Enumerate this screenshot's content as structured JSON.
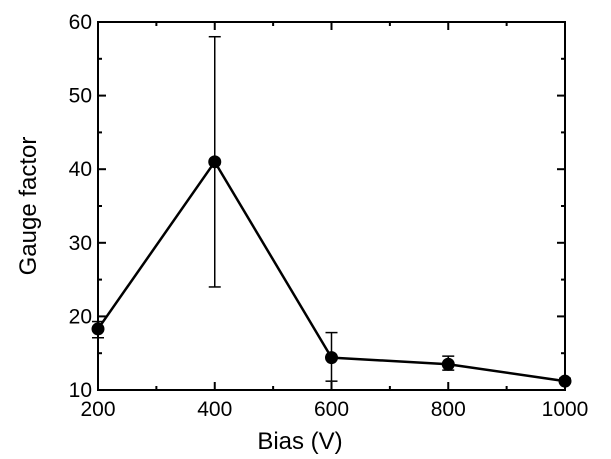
{
  "chart_data": {
    "type": "line",
    "title": "",
    "xlabel": "Bias (V)",
    "ylabel": "Gauge factor",
    "xlim": [
      200,
      1000
    ],
    "ylim": [
      10,
      60
    ],
    "x_ticks": [
      200,
      400,
      600,
      800,
      1000
    ],
    "x_minor_ticks": [
      300,
      500,
      700,
      900
    ],
    "y_ticks": [
      10,
      20,
      30,
      40,
      50,
      60
    ],
    "y_minor_ticks": [
      15,
      25,
      35,
      45,
      55
    ],
    "grid": false,
    "legend": "none",
    "series": [
      {
        "x": [
          200,
          400,
          600,
          800,
          1000
        ],
        "y": [
          18.3,
          41.0,
          14.4,
          13.5,
          11.2
        ],
        "y_err_low": [
          17.1,
          24.0,
          11.2,
          12.7,
          11.0
        ],
        "y_err_high": [
          19.3,
          58.0,
          17.8,
          14.6,
          11.6
        ],
        "color": "#000000",
        "marker": "filled-circle"
      }
    ]
  }
}
